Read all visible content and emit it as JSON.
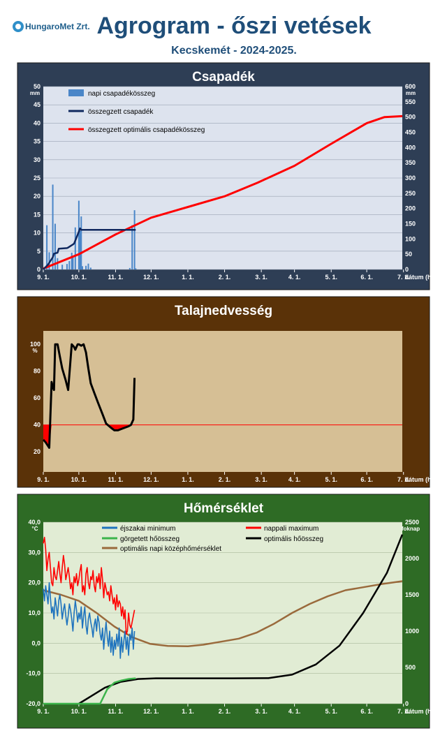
{
  "header": {
    "logo_text": "HungaroMet Zrt.",
    "title": "Agrogram - őszi vetések",
    "subtitle": "Kecskemét - 2024-2025."
  },
  "x_ticks": [
    "9. 1.",
    "10. 1.",
    "11. 1.",
    "12. 1.",
    "1. 1.",
    "2. 1.",
    "3. 1.",
    "4. 1.",
    "5. 1.",
    "6. 1.",
    "7. 1."
  ],
  "x_label": "dátum (hó.nap)",
  "chart_data": [
    {
      "type": "bar+line",
      "title": "Csapadék",
      "y_unit": "mm",
      "y2_unit": "mm",
      "ylim": [
        0,
        50
      ],
      "y2lim": [
        0,
        600
      ],
      "y_ticks": [
        "0",
        "5",
        "10",
        "15",
        "20",
        "25",
        "30",
        "35",
        "40",
        "45",
        "50"
      ],
      "y2_ticks": [
        "0",
        "50",
        "100",
        "150",
        "200",
        "250",
        "300",
        "350",
        "400",
        "450",
        "500",
        "550",
        "600"
      ],
      "colors": {
        "bars": "#4a86c8",
        "cumulative": "#10285e",
        "optimal": "#ff0000",
        "panel": "#2e3e55",
        "plot": "#dde3ee"
      },
      "series": [
        {
          "name": "napi csapadékösszeg",
          "x_days": [
            3,
            5,
            8,
            10,
            12,
            16,
            20,
            22,
            24,
            25,
            27,
            30,
            31,
            32,
            33,
            36,
            38,
            40,
            73,
            75,
            77,
            78
          ],
          "values": [
            12.1,
            4.7,
            23.2,
            12.5,
            3.1,
            1.3,
            1.5,
            2.3,
            4.6,
            3.5,
            11.5,
            18.8,
            10.5,
            14.5,
            0.9,
            1.0,
            1.6,
            0.5,
            0.4,
            12.1,
            16.2,
            0.3
          ]
        },
        {
          "name": "összegzett csapadék",
          "x_days": [
            0,
            3,
            4,
            8,
            9,
            12,
            13,
            20,
            21,
            25,
            26,
            30,
            31,
            32,
            36,
            78
          ],
          "values": [
            0,
            12,
            16,
            40,
            52,
            55,
            68,
            70,
            72,
            82,
            85,
            124,
            135,
            130,
            130,
            130
          ]
        },
        {
          "name": "összegzett optimális csapadékösszeg",
          "x_days": [
            0,
            30,
            61,
            91,
            122,
            153,
            181,
            212,
            242,
            273,
            288,
            303
          ],
          "values": [
            3,
            50,
            115,
            170,
            205,
            240,
            285,
            340,
            410,
            480,
            500,
            503
          ]
        }
      ]
    },
    {
      "type": "line",
      "title": "Talajnedvesség",
      "y_unit": "%",
      "ylim": [
        5,
        110
      ],
      "y_ticks": [
        "20",
        "40",
        "60",
        "80",
        "100"
      ],
      "threshold": 40,
      "colors": {
        "line": "#000000",
        "threshold": "#ff0000",
        "deficit": "#ff0000",
        "panel": "#5a3208",
        "plot": "#d6bf95"
      },
      "series": [
        {
          "name": "talajnedvesség",
          "x_days": [
            0,
            2,
            5,
            7,
            8,
            9,
            10,
            12,
            14,
            16,
            19,
            21,
            24,
            26,
            27,
            29,
            30,
            32,
            34,
            36,
            38,
            40,
            43,
            46,
            50,
            53,
            57,
            60,
            63,
            66,
            69,
            72,
            74,
            76,
            77
          ],
          "values": [
            29,
            27,
            23,
            72,
            68,
            66,
            100,
            100,
            91,
            82,
            73,
            66,
            100,
            98,
            96,
            100,
            100,
            99,
            100,
            94,
            82,
            71,
            64,
            57,
            48,
            41,
            38,
            36,
            36,
            37,
            38,
            39,
            40,
            44,
            75
          ]
        }
      ]
    },
    {
      "type": "line",
      "title": "Hőmérséklet",
      "y_unit": "°C",
      "y2_unit": "foknap",
      "ylim": [
        -20,
        40
      ],
      "y2lim": [
        0,
        2500
      ],
      "y_ticks": [
        "-20,0",
        "-10,0",
        "0,0",
        "10,0",
        "20,0",
        "30,0",
        "40,0"
      ],
      "y2_ticks": [
        "0",
        "500",
        "1000",
        "1500",
        "2000",
        "2500"
      ],
      "colors": {
        "min": "#1e73be",
        "max": "#ff0000",
        "rolling": "#3cb44b",
        "optimal_sum": "#000000",
        "optimal_mean": "#9a6a3c",
        "panel": "#2e6b25",
        "plot": "#e1ecd4"
      },
      "series": [
        {
          "name": "éjszakai minimum",
          "x_days": [
            0,
            1,
            2,
            3,
            4,
            5,
            6,
            7,
            8,
            9,
            10,
            11,
            12,
            13,
            14,
            15,
            16,
            17,
            18,
            19,
            20,
            21,
            22,
            23,
            24,
            25,
            26,
            27,
            28,
            29,
            30,
            31,
            32,
            33,
            34,
            35,
            36,
            37,
            38,
            39,
            40,
            41,
            42,
            43,
            44,
            45,
            46,
            47,
            48,
            49,
            50,
            51,
            52,
            53,
            54,
            55,
            56,
            57,
            58,
            59,
            60,
            61,
            62,
            63,
            64,
            65,
            66,
            67,
            68,
            69,
            70,
            71,
            72,
            73,
            74,
            75,
            76,
            77
          ],
          "values": [
            18,
            14,
            19,
            16,
            13,
            20,
            15,
            10,
            12,
            8,
            15,
            12,
            9,
            14,
            16,
            13,
            8,
            11,
            13,
            9,
            6,
            9,
            13,
            11,
            8,
            4,
            10,
            14,
            11,
            7,
            10,
            8,
            12,
            5,
            9,
            12,
            6,
            3,
            8,
            10,
            7,
            5,
            2,
            6,
            8,
            4,
            9,
            7,
            3,
            1,
            5,
            -2,
            3,
            7,
            2,
            -1,
            4,
            -3,
            2,
            -4,
            1,
            -2,
            3,
            -1,
            5,
            -5,
            2,
            -3,
            1,
            4,
            -2,
            2,
            -4,
            3,
            1,
            5,
            -2,
            4
          ]
        },
        {
          "name": "nappali maximum",
          "x_days": [
            0,
            1,
            2,
            3,
            4,
            5,
            6,
            7,
            8,
            9,
            10,
            11,
            12,
            13,
            14,
            15,
            16,
            17,
            18,
            19,
            20,
            21,
            22,
            23,
            24,
            25,
            26,
            27,
            28,
            29,
            30,
            31,
            32,
            33,
            34,
            35,
            36,
            37,
            38,
            39,
            40,
            41,
            42,
            43,
            44,
            45,
            46,
            47,
            48,
            49,
            50,
            51,
            52,
            53,
            54,
            55,
            56,
            57,
            58,
            59,
            60,
            61,
            62,
            63,
            64,
            65,
            66,
            67,
            68,
            69,
            70,
            71,
            72,
            73,
            74,
            75,
            76,
            77
          ],
          "values": [
            33,
            35,
            31,
            24,
            28,
            30,
            25,
            20,
            19,
            25,
            22,
            21,
            24,
            27,
            23,
            20,
            25,
            29,
            26,
            21,
            23,
            25,
            22,
            18,
            20,
            16,
            22,
            20,
            23,
            19,
            21,
            24,
            26,
            17,
            19,
            16,
            23,
            25,
            20,
            18,
            22,
            21,
            24,
            19,
            17,
            22,
            20,
            23,
            18,
            25,
            21,
            15,
            20,
            18,
            16,
            17,
            14,
            19,
            16,
            13,
            15,
            11,
            16,
            12,
            14,
            13,
            9,
            12,
            8,
            11,
            3,
            4,
            10,
            6,
            5,
            7,
            9,
            11
          ]
        },
        {
          "name": "görgetett hőösszeg",
          "x_days": [
            0,
            6,
            12,
            18,
            24,
            30,
            36,
            42,
            48,
            54,
            60,
            66,
            72,
            78
          ],
          "values": [
            0,
            0,
            0,
            0,
            0,
            0,
            0,
            0,
            0,
            200,
            290,
            320,
            340,
            350
          ]
        },
        {
          "name": "optimális hőösszeg",
          "x_days": [
            30,
            40,
            52,
            65,
            80,
            95,
            110,
            120,
            160,
            190,
            210,
            230,
            250,
            270,
            290,
            303
          ],
          "values": [
            0,
            100,
            220,
            300,
            340,
            350,
            350,
            350,
            350,
            352,
            400,
            540,
            800,
            1250,
            1800,
            2330
          ]
        },
        {
          "name": "optimális napi középhőmérséklet",
          "x_days": [
            0,
            15,
            30,
            45,
            60,
            75,
            90,
            105,
            122,
            135,
            150,
            165,
            180,
            195,
            210,
            225,
            240,
            255,
            270,
            285,
            303
          ],
          "values": [
            17.5,
            16,
            14,
            10,
            5.5,
            2,
            -0.2,
            -0.9,
            -1,
            -0.5,
            0.5,
            1.5,
            3.5,
            6.5,
            10,
            13,
            15.5,
            17.5,
            18.5,
            19.5,
            20.5
          ]
        }
      ]
    }
  ]
}
